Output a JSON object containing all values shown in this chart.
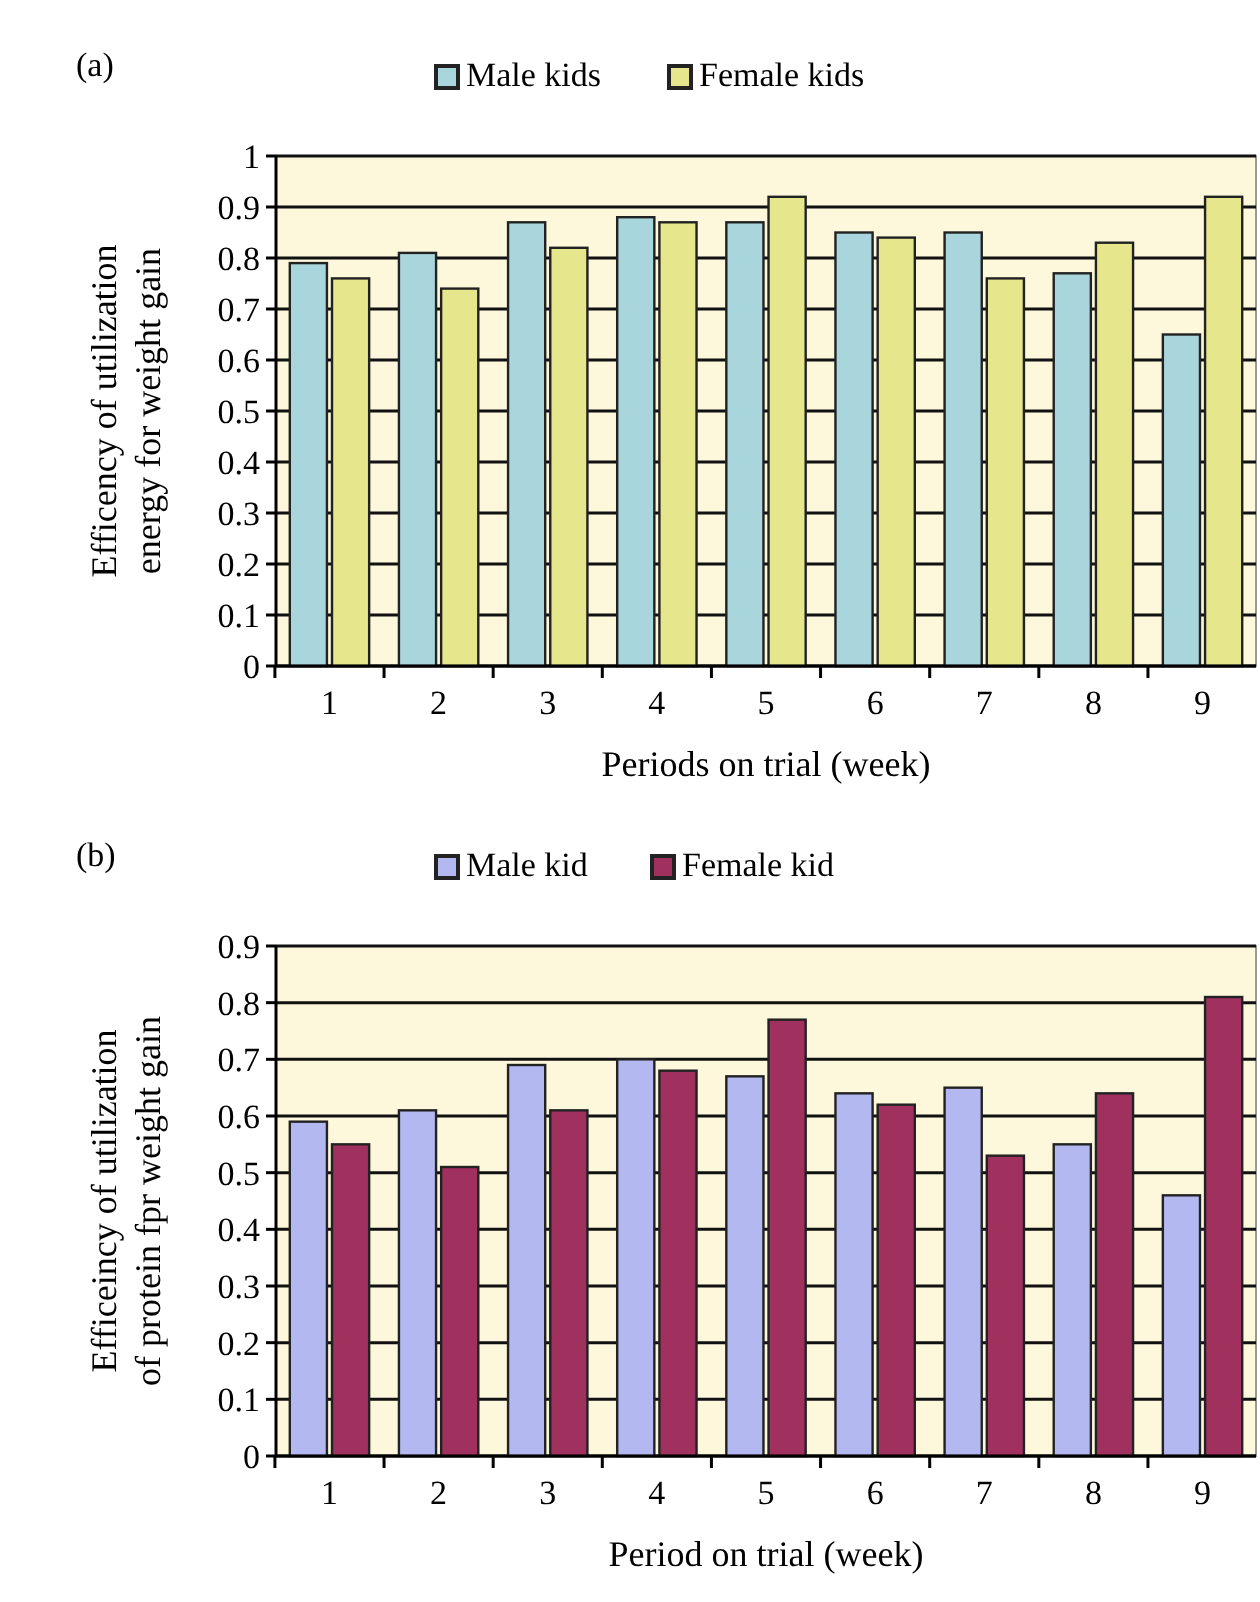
{
  "chart_data": [
    {
      "type": "bar",
      "title": "(a)",
      "xlabel": "Periods on trial (week)",
      "ylabel": "Efficency of utilization energy for weight gain",
      "categories": [
        "1",
        "2",
        "3",
        "4",
        "5",
        "6",
        "7",
        "8",
        "9"
      ],
      "series": [
        {
          "name": "Male kids",
          "color": "#a9d6dc",
          "values": [
            0.79,
            0.81,
            0.87,
            0.88,
            0.87,
            0.85,
            0.85,
            0.77,
            0.65
          ]
        },
        {
          "name": "Female kids",
          "color": "#e6e68c",
          "values": [
            0.76,
            0.74,
            0.82,
            0.87,
            0.92,
            0.84,
            0.76,
            0.83,
            0.92
          ]
        }
      ],
      "ylim": [
        0,
        1
      ],
      "yticks": [
        0,
        0.1,
        0.2,
        0.3,
        0.4,
        0.5,
        0.6,
        0.7,
        0.8,
        0.9,
        1
      ],
      "grid": "y",
      "legend": "top"
    },
    {
      "type": "bar",
      "title": "(b)",
      "xlabel": "Period on trial (week)",
      "ylabel": "Efficeincy of utilization of protein fpr weight gain",
      "categories": [
        "1",
        "2",
        "3",
        "4",
        "5",
        "6",
        "7",
        "8",
        "9"
      ],
      "series": [
        {
          "name": "Male kid",
          "color": "#b4b8f0",
          "values": [
            0.59,
            0.61,
            0.69,
            0.7,
            0.67,
            0.64,
            0.65,
            0.55,
            0.46
          ]
        },
        {
          "name": "Female kid",
          "color": "#a0305e",
          "values": [
            0.55,
            0.51,
            0.61,
            0.68,
            0.77,
            0.62,
            0.53,
            0.64,
            0.81
          ]
        }
      ],
      "ylim": [
        0,
        0.9
      ],
      "yticks": [
        0,
        0.1,
        0.2,
        0.3,
        0.4,
        0.5,
        0.6,
        0.7,
        0.8,
        0.9
      ],
      "grid": "y",
      "legend": "top"
    }
  ]
}
